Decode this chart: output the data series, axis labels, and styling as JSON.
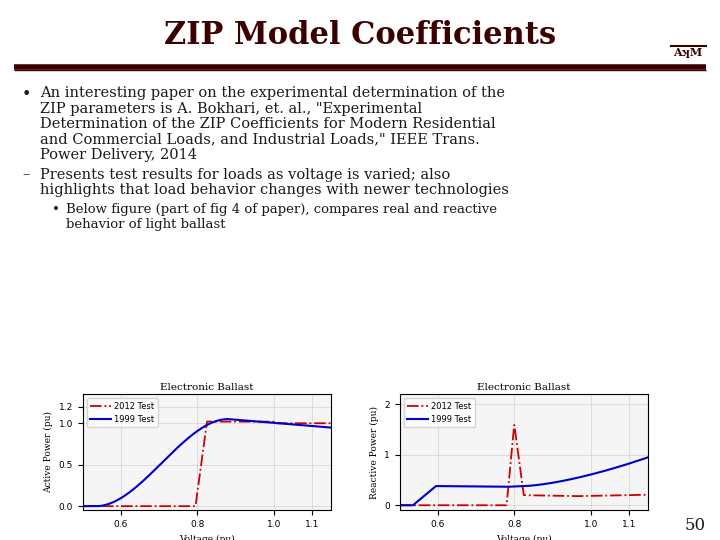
{
  "title": "ZIP Model Coefficients",
  "title_color": "#3B0000",
  "title_fontsize": 22,
  "bg_color": "#FFFFFF",
  "separator_color": "#3B0000",
  "text_color": "#1A1A1A",
  "page_number": "50",
  "plot1_title": "Electronic Ballast",
  "plot1_ylabel": "Active Power (pu)",
  "plot2_title": "Electronic Ballast",
  "plot2_ylabel": "Reactive Power (pu)",
  "xlabel": "Voltage (pu)",
  "legend_2012": "2012 Test",
  "legend_1999": "1999 Test",
  "color_2012": "#CC0000",
  "color_1999": "#0000CC",
  "font_body": 10.5,
  "bullet_lines": [
    "An interesting paper on the experimental determination of the",
    "ZIP parameters is A. Bokhari, et. al., \"Experimental",
    "Determination of the ZIP Coefficients for Modern Residential",
    "and Commercial Loads, and Industrial Loads,\" IEEE Trans.",
    "Power Delivery, 2014"
  ],
  "dash_lines": [
    "Presents test results for loads as voltage is varied; also",
    "highlights that load behavior changes with newer technologies"
  ],
  "sub_lines": [
    "Below figure (part of fig 4 of paper), compares real and reactive",
    "behavior of light ballast"
  ]
}
